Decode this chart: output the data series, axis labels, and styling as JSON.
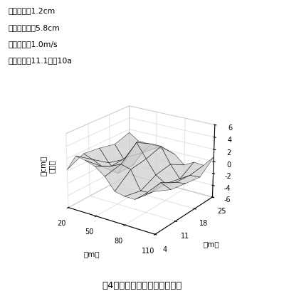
{
  "annotations": [
    "標準偏差：1.2cm",
    "最大高低差：5.8cm",
    "走行速度：1.0m/s",
    "作業時間：11.1分／10a"
  ],
  "caption": "図4　均平作業後の圃場の高低",
  "zlabel_line1": "（cm）",
  "zlabel_line2": "比高値",
  "xlabel": "（m）",
  "ylabel": "（m）",
  "x_tick_labels": [
    "20",
    "50",
    "80",
    "110"
  ],
  "y_tick_labels": [
    "4",
    "11",
    "18",
    "25"
  ],
  "z_tick_labels": [
    "-6",
    "-4",
    "-2",
    "0",
    "2",
    "4",
    "6"
  ],
  "x_tick_vals": [
    20,
    50,
    80,
    110
  ],
  "y_tick_vals": [
    4,
    11,
    18,
    25
  ],
  "z_tick_vals": [
    -6,
    -4,
    -2,
    0,
    2,
    4,
    6
  ],
  "zlim": [
    -6,
    6
  ],
  "xlim": [
    20,
    110
  ],
  "ylim": [
    4,
    25
  ],
  "nx": 10,
  "ny": 5,
  "seed": 7,
  "elev": 22,
  "azim": -55
}
